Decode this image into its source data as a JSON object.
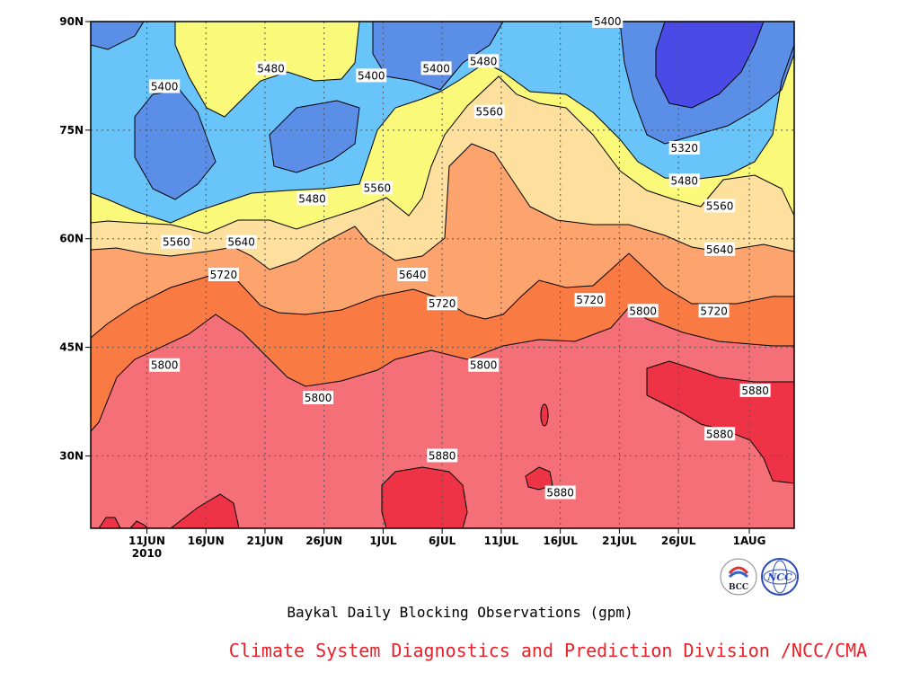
{
  "chart_data": {
    "type": "contour",
    "title": "Baykal Daily Blocking Observations (gpm)",
    "credit": "Climate System Diagnostics and Prediction Division /NCC/CMA",
    "x_ticks": [
      {
        "label": "11JUN",
        "day": 11
      },
      {
        "label": "16JUN",
        "day": 16
      },
      {
        "label": "21JUN",
        "day": 21
      },
      {
        "label": "26JUN",
        "day": 26
      },
      {
        "label": "1JUL",
        "day": 31
      },
      {
        "label": "6JUL",
        "day": 36
      },
      {
        "label": "11JUL",
        "day": 41
      },
      {
        "label": "16JUL",
        "day": 46
      },
      {
        "label": "21JUL",
        "day": 51
      },
      {
        "label": "26JUL",
        "day": 56
      },
      {
        "label": "1AUG",
        "day": 62
      }
    ],
    "year_label": "2010",
    "y_ticks": [
      {
        "label": "30N",
        "lat": 30
      },
      {
        "label": "45N",
        "lat": 45
      },
      {
        "label": "60N",
        "lat": 60
      },
      {
        "label": "75N",
        "lat": 75
      },
      {
        "label": "90N",
        "lat": 90
      }
    ],
    "xlim": [
      6.25,
      65.8
    ],
    "ylim": [
      20,
      90
    ],
    "grid": true,
    "levels": [
      5320,
      5400,
      5480,
      5560,
      5640,
      5720,
      5800,
      5880
    ],
    "contour_labels": [
      {
        "text": "5400",
        "day": 12.5,
        "lat": 81
      },
      {
        "text": "5480",
        "day": 21.5,
        "lat": 83.5
      },
      {
        "text": "5400",
        "day": 30,
        "lat": 82.5
      },
      {
        "text": "5400",
        "day": 35.5,
        "lat": 83.5
      },
      {
        "text": "5480",
        "day": 39.5,
        "lat": 84.5
      },
      {
        "text": "5400",
        "day": 50,
        "lat": 90
      },
      {
        "text": "5320",
        "day": 56.5,
        "lat": 72.5
      },
      {
        "text": "5560",
        "day": 40,
        "lat": 77.5
      },
      {
        "text": "5480",
        "day": 25,
        "lat": 65.5
      },
      {
        "text": "5560",
        "day": 30.5,
        "lat": 67
      },
      {
        "text": "5480",
        "day": 56.5,
        "lat": 68
      },
      {
        "text": "5560",
        "day": 59.5,
        "lat": 64.5
      },
      {
        "text": "5560",
        "day": 13.5,
        "lat": 59.5
      },
      {
        "text": "5640",
        "day": 19,
        "lat": 59.5
      },
      {
        "text": "5640",
        "day": 33.5,
        "lat": 55
      },
      {
        "text": "5640",
        "day": 59.5,
        "lat": 58.5
      },
      {
        "text": "5720",
        "day": 17.5,
        "lat": 55
      },
      {
        "text": "5720",
        "day": 36,
        "lat": 51
      },
      {
        "text": "5720",
        "day": 48.5,
        "lat": 51.5
      },
      {
        "text": "5800",
        "day": 53,
        "lat": 50
      },
      {
        "text": "5720",
        "day": 59,
        "lat": 50
      },
      {
        "text": "5800",
        "day": 12.5,
        "lat": 42.5
      },
      {
        "text": "5800",
        "day": 25.5,
        "lat": 38
      },
      {
        "text": "5800",
        "day": 39.5,
        "lat": 42.5
      },
      {
        "text": "5880",
        "day": 36,
        "lat": 30
      },
      {
        "text": "5880",
        "day": 46,
        "lat": 24.9
      },
      {
        "text": "5880",
        "day": 62.5,
        "lat": 39
      },
      {
        "text": "5880",
        "day": 59.5,
        "lat": 33
      }
    ],
    "colors": {
      "lt5320": "#4a4ae6",
      "5320_5400": "#5b8ee6",
      "5400_5480": "#69c4fa",
      "5480_5560": "#fbf97a",
      "5560_5640": "#fddf9e",
      "5640_5720": "#fca36e",
      "5720_5800": "#fa7a44",
      "5800_5880": "#f46f78",
      "gt5880": "#ee3346"
    },
    "logos": [
      "BCC",
      "NCC"
    ]
  }
}
